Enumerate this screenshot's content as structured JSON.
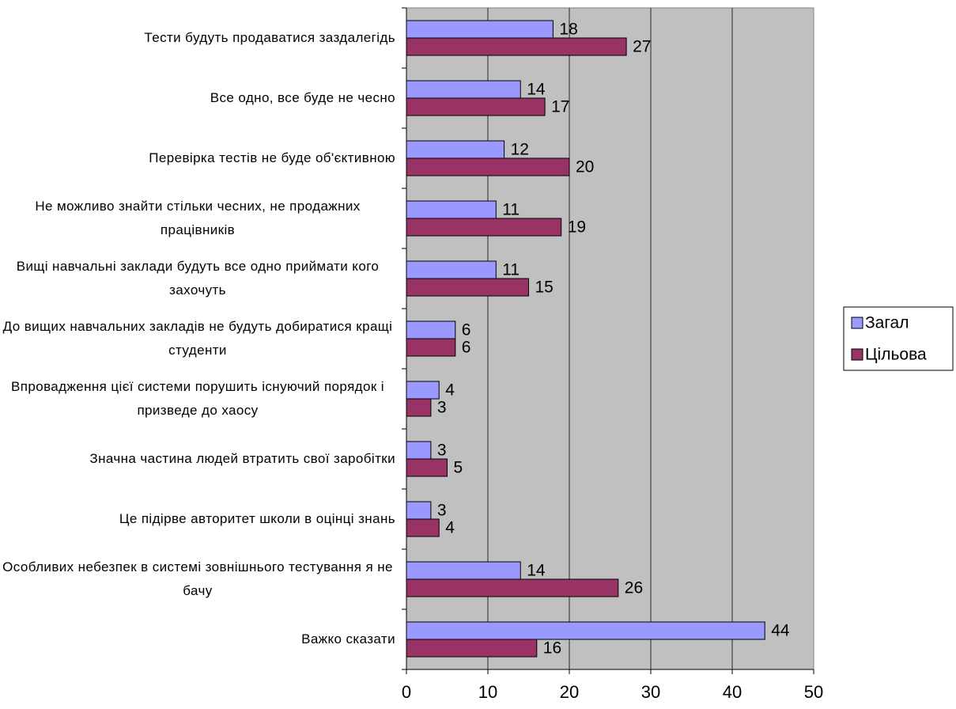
{
  "chart_data": {
    "type": "bar",
    "orientation": "horizontal",
    "categories": [
      "Тести будуть продаватися заздалегідь",
      "Все одно, все буде не чесно",
      "Перевірка тестів не буде об'єктивною",
      "Не можливо знайти стільки чесних, не продажних працівників",
      "Вищі навчальні заклади будуть все одно приймати кого захочуть",
      "До вищих навчальних закладів не будуть добиратися кращі студенти",
      "Впровадження цієї системи порушить існуючий порядок і призведе до хаосу",
      "Значна частина людей втратить свої заробітки",
      "Це підірве авторитет школи в оцінці знань",
      "Особливих небезпек в системі зовнішнього тестування я не бачу",
      "Важко сказати"
    ],
    "series": [
      {
        "name": "Загал",
        "color": "#9999ff",
        "values": [
          18,
          14,
          12,
          11,
          11,
          6,
          4,
          3,
          3,
          14,
          44
        ]
      },
      {
        "name": "Цільова",
        "color": "#993366",
        "values": [
          27,
          17,
          20,
          19,
          15,
          6,
          3,
          5,
          4,
          26,
          16
        ]
      }
    ],
    "xlim": [
      0,
      50
    ],
    "xticks": [
      0,
      10,
      20,
      30,
      40,
      50
    ],
    "grid": true,
    "background": "#c0c0c0",
    "legend": "right"
  }
}
